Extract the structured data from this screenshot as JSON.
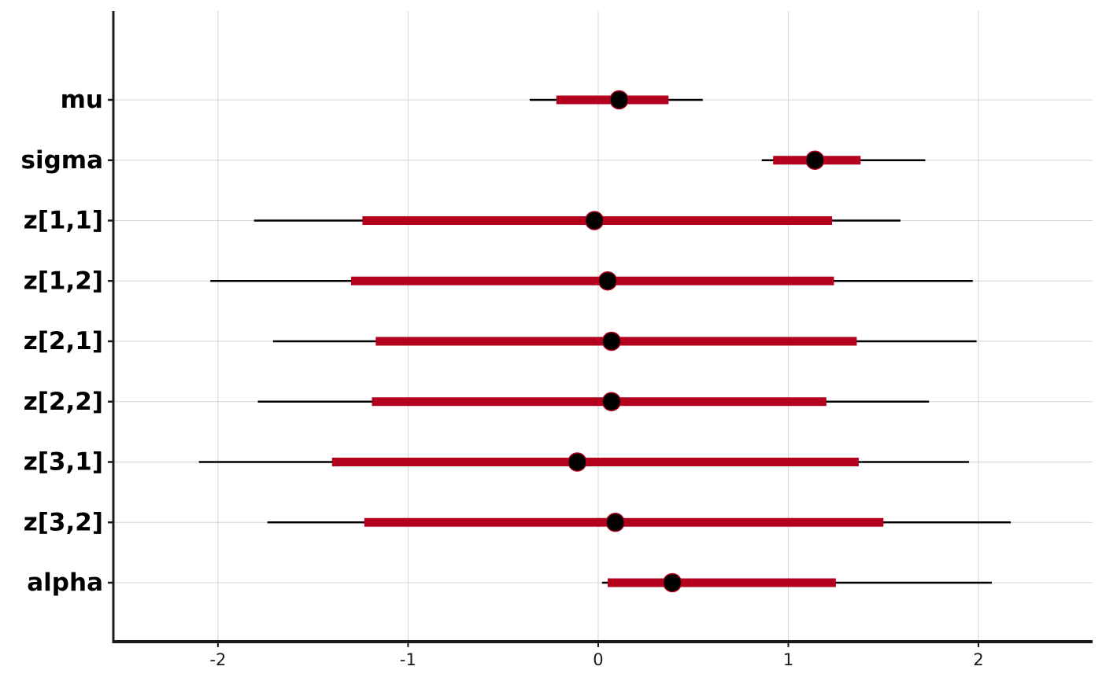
{
  "chart_data": {
    "type": "interval",
    "title": "",
    "xlabel": "",
    "ylabel": "",
    "xlim": [
      -2.55,
      2.6
    ],
    "x_ticks": [
      -2,
      -1,
      0,
      1,
      2
    ],
    "x_tick_labels": [
      "-2",
      "-1",
      "0",
      "1",
      "2"
    ],
    "grid": true,
    "colors": {
      "inner_interval": "#b2001d",
      "outer_interval": "#000000",
      "point_fill": "#000000",
      "point_stroke": "#b2001d",
      "grid": "#d4d4d4",
      "axis": "#1a1a1a"
    },
    "parameters": [
      {
        "name": "mu",
        "point": 0.11,
        "inner": [
          -0.22,
          0.37
        ],
        "outer": [
          -0.36,
          0.55
        ]
      },
      {
        "name": "sigma",
        "point": 1.14,
        "inner": [
          0.92,
          1.38
        ],
        "outer": [
          0.86,
          1.72
        ]
      },
      {
        "name": "z[1,1]",
        "point": -0.02,
        "inner": [
          -1.24,
          1.23
        ],
        "outer": [
          -1.81,
          1.59
        ]
      },
      {
        "name": "z[1,2]",
        "point": 0.05,
        "inner": [
          -1.3,
          1.24
        ],
        "outer": [
          -2.04,
          1.97
        ]
      },
      {
        "name": "z[2,1]",
        "point": 0.07,
        "inner": [
          -1.17,
          1.36
        ],
        "outer": [
          -1.71,
          1.99
        ]
      },
      {
        "name": "z[2,2]",
        "point": 0.07,
        "inner": [
          -1.19,
          1.2
        ],
        "outer": [
          -1.79,
          1.74
        ]
      },
      {
        "name": "z[3,1]",
        "point": -0.11,
        "inner": [
          -1.4,
          1.37
        ],
        "outer": [
          -2.1,
          1.95
        ]
      },
      {
        "name": "z[3,2]",
        "point": 0.09,
        "inner": [
          -1.23,
          1.5
        ],
        "outer": [
          -1.74,
          2.17
        ]
      },
      {
        "name": "alpha",
        "point": 0.39,
        "inner": [
          0.05,
          1.25
        ],
        "outer": [
          0.02,
          2.07
        ]
      }
    ]
  }
}
